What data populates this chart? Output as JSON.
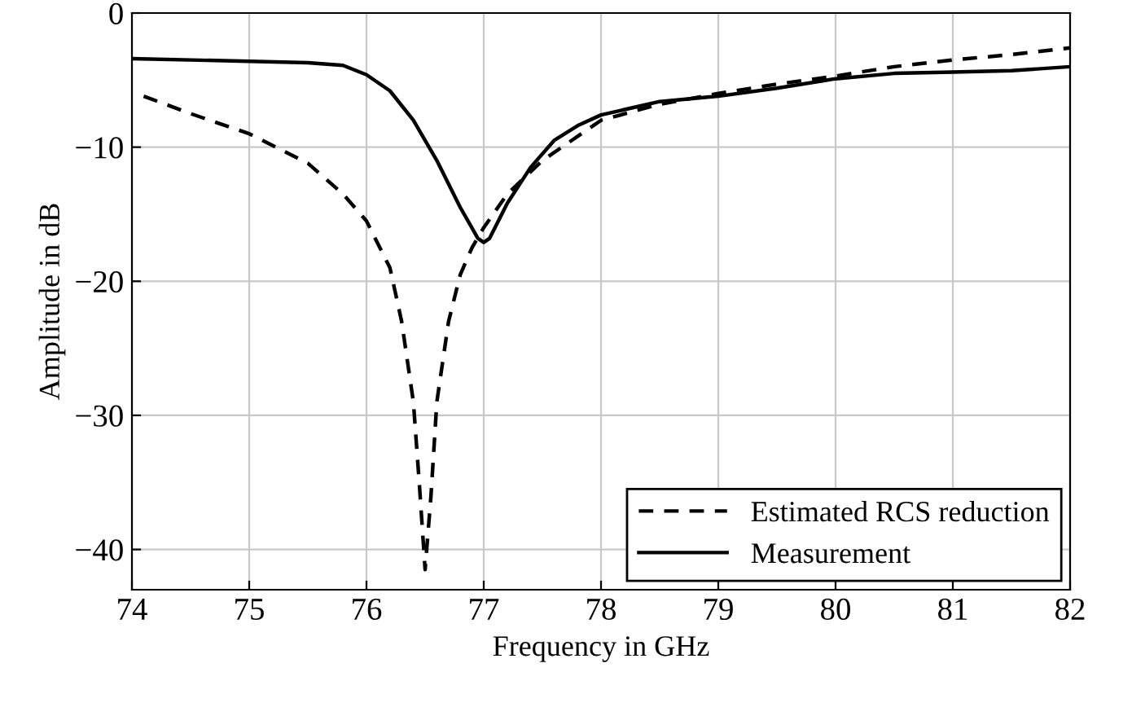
{
  "chart_data": {
    "type": "line",
    "xlabel": "Frequency in GHz",
    "ylabel": "Amplitude in dB",
    "xlim": [
      74,
      82
    ],
    "xticks": [
      74,
      75,
      76,
      77,
      78,
      79,
      80,
      81,
      82
    ],
    "ylim": [
      -43,
      0
    ],
    "yticks": [
      {
        "value": 0,
        "label": "0"
      },
      {
        "value": -10,
        "label": "−10"
      },
      {
        "value": -20,
        "label": "−20"
      },
      {
        "value": -30,
        "label": "−30"
      },
      {
        "value": -40,
        "label": "−40"
      }
    ],
    "grid": true,
    "legend": "bottom right",
    "series": [
      {
        "name": "Estimated RCS reduction",
        "color": "#000000",
        "line_style": "dashed",
        "x": [
          74.1,
          74.5,
          75,
          75.5,
          75.8,
          76,
          76.2,
          76.3,
          76.4,
          76.45,
          76.5,
          76.55,
          76.6,
          76.7,
          76.8,
          76.9,
          77,
          77.2,
          77.5,
          78,
          78.5,
          79,
          79.5,
          80,
          80.5,
          81,
          81.5,
          82
        ],
        "values": [
          -6.2,
          -7.5,
          -9,
          -11.2,
          -13.5,
          -15.5,
          -19,
          -23,
          -29,
          -35,
          -41.5,
          -36,
          -29,
          -23,
          -19.5,
          -17.5,
          -16,
          -13.5,
          -11,
          -8,
          -6.8,
          -6,
          -5.3,
          -4.7,
          -4,
          -3.5,
          -3.1,
          -2.6
        ]
      },
      {
        "name": "Measurement",
        "color": "#000000",
        "line_style": "solid",
        "x": [
          74,
          75,
          75.5,
          75.8,
          76,
          76.2,
          76.4,
          76.6,
          76.8,
          76.95,
          77,
          77.05,
          77.2,
          77.4,
          77.6,
          77.8,
          78,
          78.5,
          79,
          79.5,
          80,
          80.5,
          81,
          81.5,
          82
        ],
        "values": [
          -3.4,
          -3.6,
          -3.7,
          -3.9,
          -4.6,
          -5.8,
          -8,
          -11,
          -14.5,
          -16.8,
          -17.1,
          -16.8,
          -14.2,
          -11.5,
          -9.5,
          -8.4,
          -7.6,
          -6.6,
          -6.2,
          -5.6,
          -4.9,
          -4.5,
          -4.4,
          -4.3,
          -4.0
        ]
      }
    ]
  }
}
